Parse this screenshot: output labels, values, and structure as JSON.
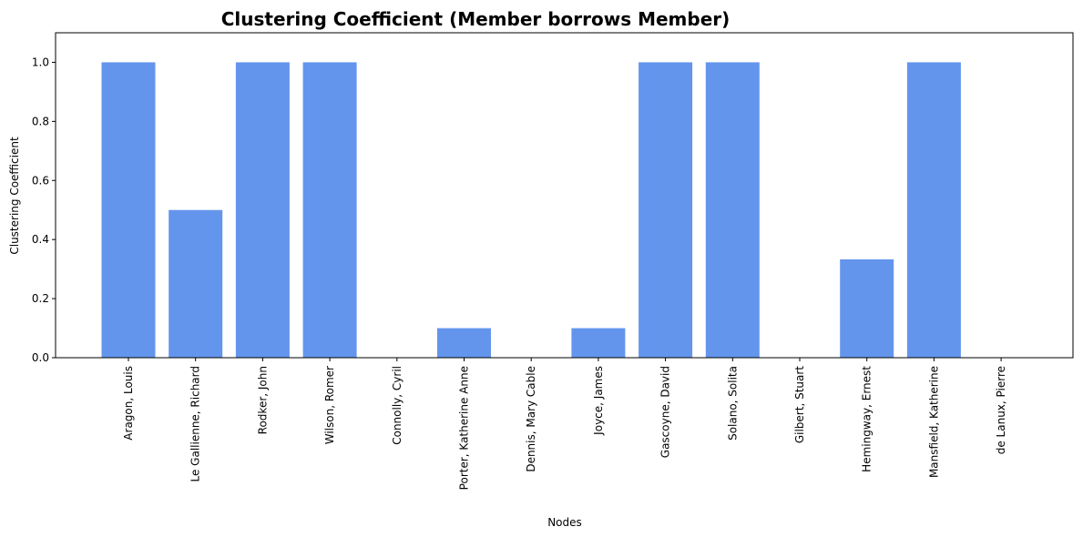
{
  "chart_data": {
    "type": "bar",
    "title": "Clustering Coefficient (Member borrows Member)",
    "xlabel": "Nodes",
    "ylabel": "Clustering Coefficient",
    "categories": [
      "Aragon, Louis",
      "Le Gallienne, Richard",
      "Rodker, John",
      "Wilson, Romer",
      "Connolly, Cyril",
      "Porter, Katherine Anne",
      "Dennis, Mary Cable",
      "Joyce, James",
      "Gascoyne, David",
      "Solano, Solita",
      "Gilbert, Stuart",
      "Hemingway, Ernest",
      "Mansfield, Katherine",
      "de Lanux, Pierre"
    ],
    "values": [
      1.0,
      0.5,
      1.0,
      1.0,
      0.0,
      0.1,
      0.0,
      0.1,
      1.0,
      1.0,
      0.0,
      0.333,
      1.0,
      0.0
    ],
    "ylim": [
      0,
      1.1
    ],
    "yticks": [
      "0.0",
      "0.2",
      "0.4",
      "0.6",
      "0.8",
      "1.0"
    ],
    "bar_color": "#6495ED",
    "grid": false,
    "legend": "none"
  }
}
